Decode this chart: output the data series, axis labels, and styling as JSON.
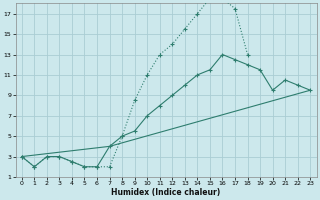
{
  "xlabel": "Humidex (Indice chaleur)",
  "bg_color": "#cce8ec",
  "grid_color": "#aacdd4",
  "line_color": "#2e7d6e",
  "xlim": [
    -0.5,
    23.5
  ],
  "ylim": [
    1,
    18
  ],
  "xticks": [
    0,
    1,
    2,
    3,
    4,
    5,
    6,
    7,
    8,
    9,
    10,
    11,
    12,
    13,
    14,
    15,
    16,
    17,
    18,
    19,
    20,
    21,
    22,
    23
  ],
  "yticks": [
    1,
    3,
    5,
    7,
    9,
    11,
    13,
    15,
    17
  ],
  "curve1_x": [
    0,
    1,
    2,
    3,
    4,
    5,
    6,
    7,
    8,
    9,
    10,
    11,
    12,
    13,
    14,
    15,
    16,
    17,
    18
  ],
  "curve1_y": [
    3,
    2,
    3,
    3,
    2.5,
    2,
    2,
    2,
    5,
    8.5,
    11,
    13,
    14,
    15.5,
    17,
    18.5,
    18.5,
    17.5,
    13
  ],
  "curve2_x": [
    0,
    1,
    2,
    3,
    4,
    5,
    6,
    7,
    8,
    9,
    10,
    11,
    12,
    13,
    14,
    15,
    16,
    17,
    18,
    19,
    20,
    21,
    22,
    23
  ],
  "curve2_y": [
    3,
    2,
    3,
    3,
    2.5,
    2,
    2,
    4,
    5,
    5.5,
    7,
    8,
    9,
    10,
    11,
    11.5,
    13,
    12.5,
    12,
    11.5,
    9.5,
    10.5,
    10,
    9.5
  ],
  "curve3_x": [
    0,
    7,
    23
  ],
  "curve3_y": [
    3,
    4,
    9.5
  ]
}
